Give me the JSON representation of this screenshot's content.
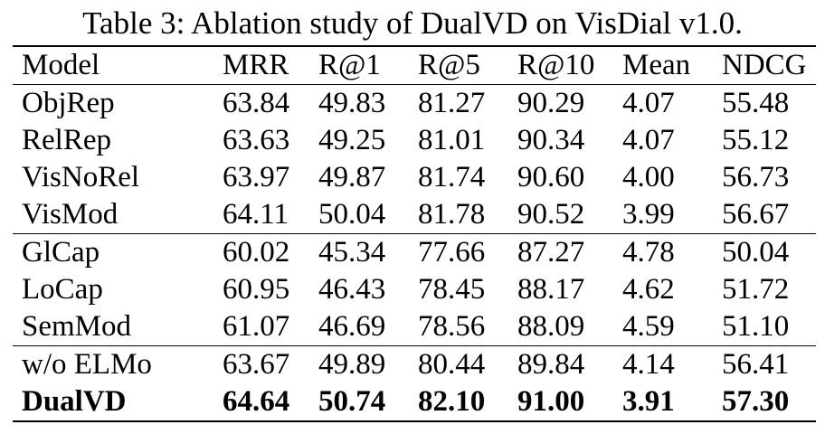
{
  "caption": "Table 3: Ablation study of DualVD on VisDial v1.0.",
  "columns": [
    "Model",
    "MRR",
    "R@1",
    "R@5",
    "R@10",
    "Mean",
    "NDCG"
  ],
  "groups": [
    [
      [
        "ObjRep",
        "63.84",
        "49.83",
        "81.27",
        "90.29",
        "4.07",
        "55.48"
      ],
      [
        "RelRep",
        "63.63",
        "49.25",
        "81.01",
        "90.34",
        "4.07",
        "55.12"
      ],
      [
        "VisNoRel",
        "63.97",
        "49.87",
        "81.74",
        "90.60",
        "4.00",
        "56.73"
      ],
      [
        "VisMod",
        "64.11",
        "50.04",
        "81.78",
        "90.52",
        "3.99",
        "56.67"
      ]
    ],
    [
      [
        "GlCap",
        "60.02",
        "45.34",
        "77.66",
        "87.27",
        "4.78",
        "50.04"
      ],
      [
        "LoCap",
        "60.95",
        "46.43",
        "78.45",
        "88.17",
        "4.62",
        "51.72"
      ],
      [
        "SemMod",
        "61.07",
        "46.69",
        "78.56",
        "88.09",
        "4.59",
        "51.10"
      ]
    ],
    [
      [
        "w/o ELMo",
        "63.67",
        "49.89",
        "80.44",
        "89.84",
        "4.14",
        "56.41"
      ],
      [
        "DualVD",
        "64.64",
        "50.74",
        "82.10",
        "91.00",
        "3.91",
        "57.30"
      ]
    ]
  ],
  "bold_row": "DualVD"
}
